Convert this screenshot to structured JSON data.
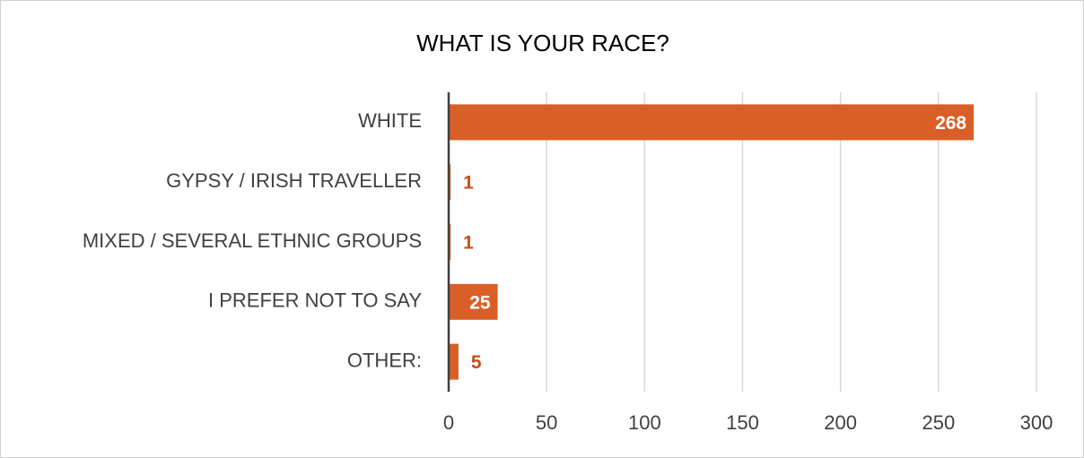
{
  "chart_data": {
    "type": "barh",
    "title": "WHAT IS YOUR RACE?",
    "categories": [
      "WHITE",
      "GYPSY / IRISH TRAVELLER",
      "MIXED / SEVERAL ETHNIC GROUPS",
      "I PREFER NOT TO SAY",
      "OTHER:"
    ],
    "values": [
      268,
      1,
      1,
      25,
      5
    ],
    "color": "#d95f27",
    "xlim": [
      0,
      300
    ],
    "xticks": [
      0,
      50,
      100,
      150,
      200,
      250,
      300
    ],
    "grid": true
  }
}
